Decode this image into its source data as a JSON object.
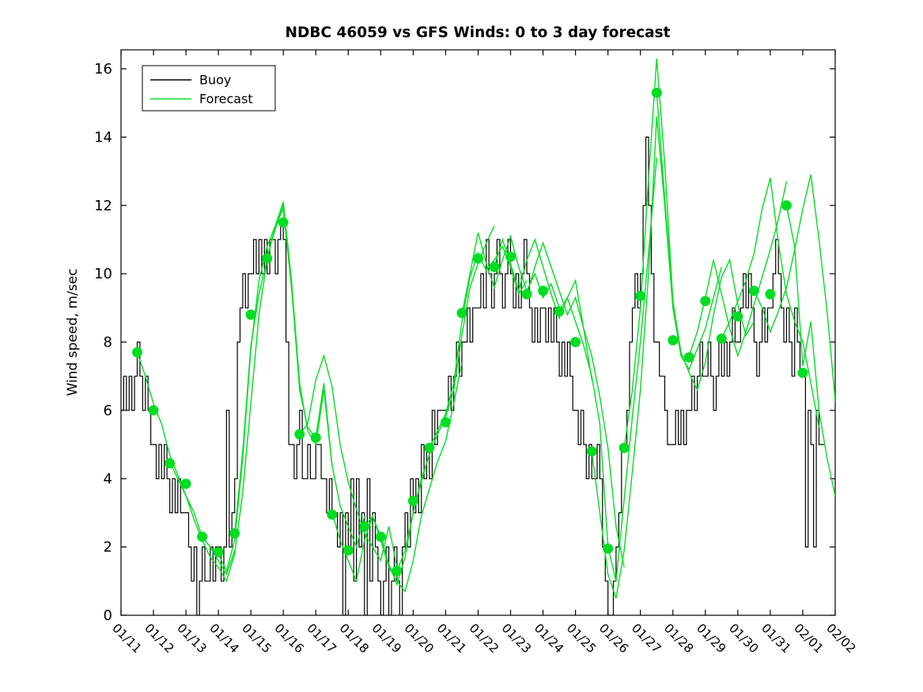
{
  "chart_data": {
    "type": "line",
    "title": "NDBC 46059 vs GFS Winds: 0 to 3 day forecast",
    "xlabel": "",
    "ylabel": "Wind speed, m/sec",
    "ylim": [
      0,
      16.55
    ],
    "yticks": [
      0,
      2,
      4,
      6,
      8,
      10,
      12,
      14,
      16
    ],
    "x_tick_labels": [
      "01/11",
      "01/12",
      "01/13",
      "01/14",
      "01/15",
      "01/16",
      "01/17",
      "01/18",
      "01/19",
      "01/20",
      "01/21",
      "01/22",
      "01/23",
      "01/24",
      "01/25",
      "01/26",
      "01/27",
      "01/28",
      "01/29",
      "01/30",
      "01/31",
      "02/01",
      "02/02"
    ],
    "x_domain_days": [
      0,
      22
    ],
    "grid": false,
    "legend": {
      "position": "top-left",
      "entries": [
        {
          "label": "Buoy",
          "color": "#000000"
        },
        {
          "label": "Forecast",
          "color": "#00dd22"
        }
      ]
    },
    "colors": {
      "buoy": "#000000",
      "forecast": "#00dd22",
      "marker": "#00dd22"
    },
    "buoy": {
      "name": "Buoy",
      "style": "stairs",
      "t0_days": 0,
      "dt_hours": 2,
      "values": [
        6,
        7,
        6,
        7,
        6,
        7,
        8,
        7,
        6,
        7,
        6,
        5,
        5,
        4,
        5,
        4,
        5,
        4,
        3,
        4,
        3,
        4,
        3,
        3,
        3,
        2,
        1,
        2,
        0,
        1,
        2,
        1,
        1,
        2,
        1,
        2,
        2,
        1,
        2,
        6,
        2,
        3,
        4,
        8,
        9,
        10,
        9,
        10,
        10,
        11,
        10,
        11,
        10,
        11,
        10,
        11,
        11,
        10,
        11,
        11.5,
        11,
        8,
        5,
        5,
        4,
        5,
        6,
        4,
        4,
        5,
        4,
        4,
        5,
        5,
        4,
        4,
        3,
        4,
        3,
        3,
        2,
        3,
        0,
        3,
        2,
        4,
        1,
        4,
        2,
        3,
        0,
        4,
        1,
        3,
        2,
        1,
        0,
        1,
        2,
        0,
        1,
        2,
        1,
        0,
        2,
        3,
        2,
        4,
        3,
        4,
        3,
        5,
        4,
        5,
        4,
        6,
        5,
        6,
        6,
        6,
        6,
        7,
        6,
        7,
        8,
        7,
        8,
        8,
        9,
        8,
        9,
        9,
        9,
        10,
        9,
        11,
        10,
        9,
        10,
        11,
        10,
        9,
        10,
        11,
        10,
        9,
        10,
        9,
        10,
        11,
        10,
        9,
        8,
        9,
        8,
        9,
        9,
        8,
        9,
        8,
        9,
        8,
        7,
        8,
        7,
        8,
        7,
        6,
        6,
        5,
        6,
        5,
        4,
        5,
        4,
        4,
        5,
        4,
        2,
        1,
        0,
        0,
        1,
        2,
        3,
        5,
        5,
        6,
        8,
        9,
        10,
        9,
        10,
        12,
        14,
        12,
        10,
        8,
        8,
        7,
        7,
        6,
        5,
        5,
        5,
        6,
        5,
        6,
        5,
        6,
        6,
        7,
        6,
        7,
        8,
        7,
        7,
        8,
        7,
        6,
        7,
        8,
        7,
        8,
        7,
        8,
        9,
        8,
        8,
        9,
        10,
        9,
        10,
        9,
        8,
        7,
        8,
        9,
        8,
        9,
        9,
        10,
        11,
        10,
        9,
        8,
        9,
        8,
        7,
        9,
        8,
        7,
        7,
        2,
        6,
        5,
        2,
        6,
        5,
        5
      ]
    },
    "forecast_runs": {
      "name": "Forecast",
      "dt_hours": 6,
      "runs": [
        {
          "t0": 0.5,
          "values": [
            7.7,
            7.0,
            6.2,
            5.6,
            4.7,
            4.1,
            3.5,
            3.0,
            2.3,
            2.0,
            1.6,
            1.2,
            1.9
          ]
        },
        {
          "t0": 1.5,
          "values": [
            4.5,
            4.0,
            3.5,
            2.8,
            2.2,
            1.7,
            1.4,
            1.0,
            1.8,
            3.6,
            6.2,
            8.8,
            10.4
          ]
        },
        {
          "t0": 2.5,
          "values": [
            2.3,
            2.0,
            1.8,
            1.3,
            2.2,
            4.6,
            7.8,
            9.8,
            10.8,
            11.4,
            12.1,
            9.8,
            6.8
          ]
        },
        {
          "t0": 3.5,
          "values": [
            2.4,
            4.8,
            7.9,
            9.4,
            10.4,
            11.4,
            11.9,
            9.6,
            6.8,
            5.4,
            5.0,
            6.6,
            4.4
          ]
        },
        {
          "t0": 4.5,
          "values": [
            10.5,
            11.3,
            12.0,
            9.7,
            6.6,
            5.5,
            5.2,
            6.8,
            4.4,
            3.2,
            2.6,
            2.0,
            2.9
          ]
        },
        {
          "t0": 5.5,
          "values": [
            5.3,
            5.6,
            6.9,
            7.6,
            6.7,
            5.0,
            3.9,
            3.1,
            2.4,
            2.0,
            1.6,
            2.6,
            1.4
          ]
        },
        {
          "t0": 6.5,
          "values": [
            3.0,
            2.2,
            1.6,
            1.0,
            2.2,
            2.9,
            2.3,
            1.5,
            0.9,
            1.7,
            3.0,
            4.0,
            4.7
          ]
        },
        {
          "t0": 7.5,
          "values": [
            2.6,
            2.9,
            2.2,
            1.4,
            1.0,
            0.7,
            1.6,
            2.9,
            3.7,
            4.5,
            5.1,
            6.2,
            7.4
          ]
        },
        {
          "t0": 8.5,
          "values": [
            1.3,
            1.9,
            3.0,
            3.9,
            4.7,
            5.3,
            5.8,
            6.6,
            8.2,
            9.6,
            10.3,
            10.9,
            11.4
          ]
        },
        {
          "t0": 9.5,
          "values": [
            4.9,
            5.4,
            5.9,
            6.8,
            8.6,
            9.9,
            10.6,
            10.1,
            10.4,
            10.8,
            10.2,
            9.4,
            9.8
          ]
        },
        {
          "t0": 10.5,
          "values": [
            8.8,
            10.0,
            11.2,
            10.3,
            9.6,
            10.4,
            11.1,
            10.2,
            9.5,
            10.0,
            9.3,
            9.7,
            9.0
          ]
        },
        {
          "t0": 11.5,
          "values": [
            10.2,
            11.0,
            10.3,
            9.5,
            10.4,
            11.0,
            10.2,
            9.4,
            8.7,
            9.3,
            9.8,
            8.4,
            6.9
          ]
        },
        {
          "t0": 12.5,
          "values": [
            9.4,
            10.2,
            10.9,
            10.2,
            9.5,
            8.8,
            9.3,
            8.4,
            7.6,
            6.4,
            4.9,
            2.6,
            1.4
          ]
        },
        {
          "t0": 13.5,
          "values": [
            8.9,
            9.3,
            8.6,
            7.9,
            7.0,
            5.6,
            2.0,
            1.0,
            3.4,
            5.8,
            8.0,
            10.6,
            13.4
          ]
        },
        {
          "t0": 14.5,
          "values": [
            4.8,
            3.0,
            1.2,
            0.5,
            1.9,
            4.2,
            6.6,
            10.0,
            14.6,
            12.0,
            9.0,
            7.6,
            7.2
          ]
        },
        {
          "t0": 15.5,
          "values": [
            4.9,
            6.6,
            9.0,
            12.8,
            16.3,
            13.2,
            9.2,
            7.6,
            7.2,
            7.8,
            8.4,
            9.3,
            10.2
          ]
        },
        {
          "t0": 16.5,
          "values": [
            15.3,
            12.2,
            9.2,
            7.7,
            7.1,
            6.6,
            7.4,
            8.8,
            9.9,
            10.4,
            9.1,
            8.2,
            8.6
          ]
        },
        {
          "t0": 17.5,
          "values": [
            7.6,
            8.3,
            9.3,
            10.4,
            9.4,
            8.4,
            7.6,
            8.3,
            9.1,
            9.9,
            10.7,
            11.6,
            12.7
          ]
        },
        {
          "t0": 18.5,
          "values": [
            8.1,
            8.6,
            9.2,
            9.8,
            10.6,
            11.9,
            12.8,
            10.9,
            9.4,
            8.6,
            8.0,
            6.8,
            5.5
          ]
        },
        {
          "t0": 19.5,
          "values": [
            9.5,
            9.0,
            8.3,
            8.9,
            9.6,
            10.7,
            11.9,
            12.9,
            11.0,
            8.9,
            6.3,
            4.9,
            4.2
          ]
        },
        {
          "t0": 20.5,
          "values": [
            12.0,
            10.8,
            7.3,
            8.6,
            6.0,
            4.6,
            3.5,
            3.0,
            2.8,
            2.6,
            2.4,
            2.2,
            2.0
          ]
        }
      ]
    },
    "forecast_start_markers": [
      [
        0.5,
        7.7
      ],
      [
        1.0,
        6.0
      ],
      [
        1.5,
        4.45
      ],
      [
        2.0,
        3.85
      ],
      [
        2.5,
        2.3
      ],
      [
        3.0,
        1.85
      ],
      [
        3.5,
        2.4
      ],
      [
        4.0,
        8.8
      ],
      [
        4.5,
        10.45
      ],
      [
        5.0,
        11.5
      ],
      [
        5.5,
        5.3
      ],
      [
        6.0,
        5.2
      ],
      [
        6.5,
        2.95
      ],
      [
        7.0,
        1.9
      ],
      [
        7.5,
        2.6
      ],
      [
        8.0,
        2.3
      ],
      [
        8.5,
        1.3
      ],
      [
        9.0,
        3.35
      ],
      [
        9.5,
        4.9
      ],
      [
        10.0,
        5.65
      ],
      [
        10.5,
        8.85
      ],
      [
        11.0,
        10.45
      ],
      [
        11.5,
        10.2
      ],
      [
        12.0,
        10.5
      ],
      [
        12.5,
        9.4
      ],
      [
        13.0,
        9.5
      ],
      [
        13.5,
        8.9
      ],
      [
        14.0,
        8.0
      ],
      [
        14.5,
        4.8
      ],
      [
        15.0,
        1.95
      ],
      [
        15.5,
        4.9
      ],
      [
        16.0,
        9.35
      ],
      [
        16.5,
        15.3
      ],
      [
        17.0,
        8.05
      ],
      [
        17.5,
        7.55
      ],
      [
        18.0,
        9.2
      ],
      [
        18.5,
        8.1
      ],
      [
        19.0,
        8.75
      ],
      [
        19.5,
        9.5
      ],
      [
        20.0,
        9.4
      ],
      [
        20.5,
        12.0
      ],
      [
        21.0,
        7.1
      ]
    ]
  }
}
